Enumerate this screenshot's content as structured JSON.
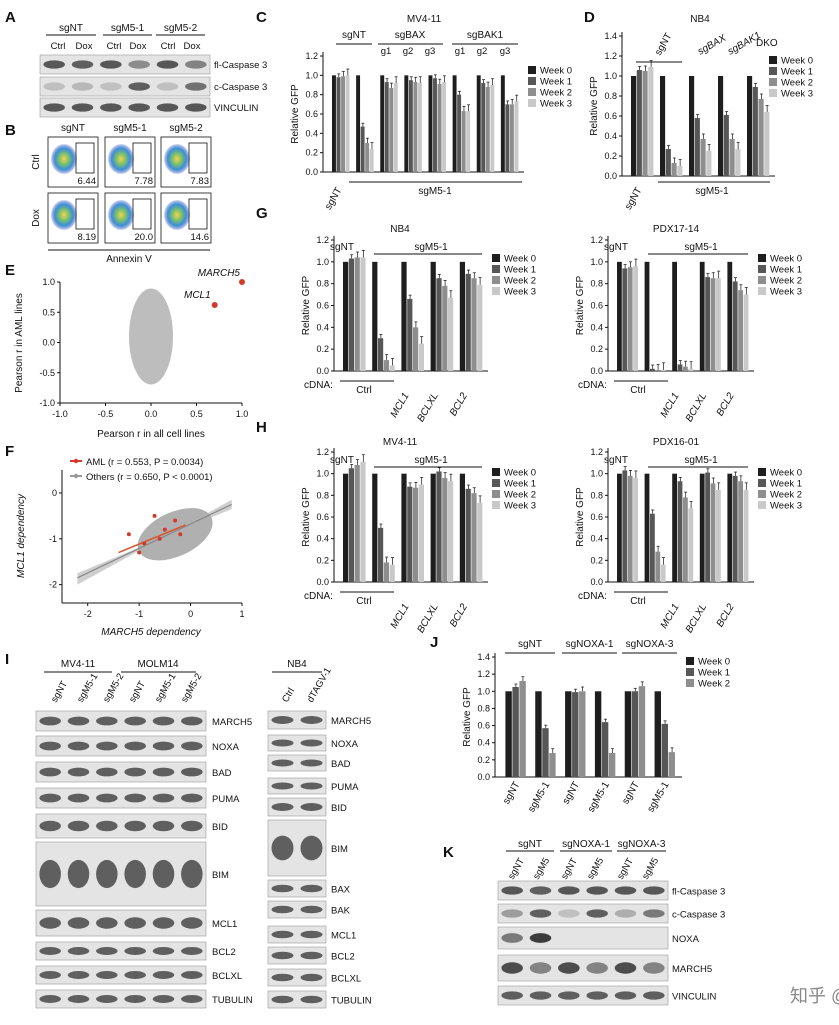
{
  "panels": [
    "A",
    "B",
    "C",
    "D",
    "E",
    "F",
    "G",
    "H",
    "I",
    "J",
    "K"
  ],
  "panelA": {
    "groups": [
      "sgNT",
      "sgM5-1",
      "sgM5-2"
    ],
    "conditions": [
      "Ctrl",
      "Dox"
    ],
    "rows": [
      "fl-Caspase 3",
      "c-Caspase 3",
      "VINCULIN"
    ]
  },
  "panelB": {
    "cols": [
      "sgNT",
      "sgM5-1",
      "sgM5-2"
    ],
    "rows": [
      "Ctrl",
      "Dox"
    ],
    "values": [
      [
        "6.44",
        "7.78",
        "7.83"
      ],
      [
        "8.19",
        "20.0",
        "14.6"
      ]
    ],
    "xlabel": "Annexin V"
  },
  "legend4": [
    "Week 0",
    "Week 1",
    "Week 2",
    "Week 3"
  ],
  "legend3": [
    "Week 0",
    "Week 1",
    "Week 2"
  ],
  "week_colors": [
    "#1e1e1e",
    "#575757",
    "#8e8e8e",
    "#c9c9c9"
  ],
  "ylabel": "Relative GFP",
  "cdna_label": "cDNA:",
  "sgnt": "sgNT",
  "sgm51": "sgM5-1",
  "panelC": {
    "title": "MV4-11",
    "top_labels": [
      "sgNT",
      "sgBAX",
      "sgBAK1"
    ],
    "sub": [
      "g1",
      "g2",
      "g3",
      "g1",
      "g2",
      "g3"
    ],
    "bottom_left": "sgNT",
    "bottom": "sgM5-1"
  },
  "panelD": {
    "title": "NB4",
    "labels": [
      "sgNT",
      "sgBAX",
      "sgBAK1",
      "DKO"
    ],
    "bottom_left": "sgNT",
    "bottom": "sgM5-1"
  },
  "panelG1": {
    "title": "NB4",
    "cdna": [
      "Ctrl",
      "MCL1",
      "BCLXL",
      "BCL2"
    ]
  },
  "panelG2": {
    "title": "PDX17-14",
    "cdna": [
      "Ctrl",
      "MCL1",
      "BCLXL",
      "BCL2"
    ]
  },
  "panelH1": {
    "title": "MV4-11",
    "cdna": [
      "Ctrl",
      "MCL1",
      "BCLXL",
      "BCL2"
    ]
  },
  "panelH2": {
    "title": "PDX16-01",
    "cdna": [
      "Ctrl",
      "MCL1",
      "BCLXL",
      "BCL2"
    ]
  },
  "panelE": {
    "xlabel": "Pearson r in all cell lines",
    "ylabel": "Pearson r in AML lines",
    "labels": [
      "MARCH5",
      "MCL1"
    ]
  },
  "panelF": {
    "legend": [
      "AML (r = 0.553, P = 0.0034)",
      "Others (r = 0.650, P < 0.0001)"
    ],
    "xlabel": "MARCH5 dependency",
    "ylabel": "MCL1 dependency"
  },
  "panelI": {
    "left_groups": [
      "MV4-11",
      "MOLM14"
    ],
    "left_lanes": [
      "sgNT",
      "sgM5-1",
      "sgM5-2",
      "sgNT",
      "sgM5-1",
      "sgM5-2"
    ],
    "right_group": "NB4",
    "right_lanes": [
      "Ctrl",
      "dTAGV-1"
    ],
    "left_rows": [
      "MARCH5",
      "NOXA",
      "BAD",
      "PUMA",
      "BID",
      "BIM",
      "MCL1",
      "BCL2",
      "BCLXL",
      "TUBULIN"
    ],
    "right_rows": [
      "MARCH5",
      "NOXA",
      "BAD",
      "PUMA",
      "BID",
      "BIM",
      "BAX",
      "BAK",
      "MCL1",
      "BCL2",
      "BCLXL",
      "TUBULIN"
    ]
  },
  "panelJ": {
    "groups": [
      "sgNT",
      "sgNOXA-1",
      "sgNOXA-3"
    ],
    "lanes": [
      "sgNT",
      "sgM5-1",
      "sgNT",
      "sgM5-1",
      "sgNT",
      "sgM5-1"
    ]
  },
  "panelK": {
    "groups": [
      "sgNT",
      "sgNOXA-1",
      "sgNOXA-3"
    ],
    "lanes": [
      "sgNT",
      "sgM5",
      "sgNT",
      "sgM5",
      "sgNT",
      "sgM5"
    ],
    "rows": [
      "fl-Caspase 3",
      "c-Caspase 3",
      "NOXA",
      "MARCH5",
      "VINCULIN"
    ]
  },
  "watermark": "知乎 @问之",
  "chart_data": [
    {
      "type": "bar",
      "panel": "C",
      "title": "MV4-11",
      "categories": [
        "sgNT",
        "sgM5-1",
        "sgBAX g1",
        "sgBAX g2",
        "sgBAX g3",
        "sgBAK1 g1",
        "sgBAK1 g2",
        "sgBAK1 g3"
      ],
      "ylim": [
        0,
        1.2
      ],
      "series": [
        {
          "name": "Week 0",
          "values": [
            1.0,
            1.0,
            1.0,
            1.0,
            1.0,
            1.0,
            1.0,
            1.0
          ]
        },
        {
          "name": "Week 1",
          "values": [
            0.98,
            0.47,
            0.93,
            0.95,
            0.97,
            0.8,
            0.92,
            0.7
          ]
        },
        {
          "name": "Week 2",
          "values": [
            0.99,
            0.3,
            0.87,
            0.93,
            0.91,
            0.63,
            0.88,
            0.7
          ]
        },
        {
          "name": "Week 3",
          "values": [
            1.0,
            0.24,
            0.92,
            0.92,
            0.93,
            0.63,
            0.9,
            0.73
          ]
        }
      ]
    },
    {
      "type": "bar",
      "panel": "D",
      "title": "NB4",
      "categories": [
        "sgNT",
        "sgM5-1",
        "sgBAX",
        "sgBAK1",
        "DKO"
      ],
      "ylim": [
        0,
        1.4
      ],
      "series": [
        {
          "name": "Week 0",
          "values": [
            1.0,
            1.0,
            1.0,
            1.0,
            1.0
          ]
        },
        {
          "name": "Week 1",
          "values": [
            1.06,
            0.27,
            0.58,
            0.61,
            0.89
          ]
        },
        {
          "name": "Week 2",
          "values": [
            1.05,
            0.13,
            0.37,
            0.37,
            0.77
          ]
        },
        {
          "name": "Week 3",
          "values": [
            1.09,
            0.1,
            0.25,
            0.27,
            0.64
          ]
        }
      ]
    },
    {
      "type": "bar",
      "panel": "G",
      "title": "NB4",
      "categories": [
        "sgNT Ctrl",
        "sgM5-1 Ctrl",
        "sgM5-1 MCL1",
        "sgM5-1 BCLXL",
        "sgM5-1 BCL2"
      ],
      "ylim": [
        0,
        1.2
      ],
      "series": [
        {
          "name": "Week 0",
          "values": [
            1.0,
            1.0,
            1.0,
            1.0,
            1.0
          ]
        },
        {
          "name": "Week 1",
          "values": [
            1.03,
            0.3,
            0.66,
            0.85,
            0.89
          ]
        },
        {
          "name": "Week 2",
          "values": [
            1.04,
            0.1,
            0.4,
            0.78,
            0.85
          ]
        },
        {
          "name": "Week 3",
          "values": [
            1.04,
            0.05,
            0.25,
            0.67,
            0.79
          ]
        }
      ]
    },
    {
      "type": "bar",
      "panel": "G",
      "title": "PDX17-14",
      "categories": [
        "sgNT Ctrl",
        "sgM5-1 Ctrl",
        "sgM5-1 MCL1",
        "sgM5-1 BCLXL",
        "sgM5-1 BCL2"
      ],
      "ylim": [
        0,
        1.2
      ],
      "series": [
        {
          "name": "Week 0",
          "values": [
            1.0,
            1.0,
            1.0,
            1.0,
            1.0
          ]
        },
        {
          "name": "Week 1",
          "values": [
            0.94,
            0.02,
            0.06,
            0.86,
            0.82
          ]
        },
        {
          "name": "Week 2",
          "values": [
            0.95,
            0.01,
            0.04,
            0.85,
            0.74
          ]
        },
        {
          "name": "Week 3",
          "values": [
            0.96,
            0.01,
            0.02,
            0.85,
            0.7
          ]
        }
      ]
    },
    {
      "type": "bar",
      "panel": "H",
      "title": "MV4-11",
      "categories": [
        "sgNT Ctrl",
        "sgM5-1 Ctrl",
        "sgM5-1 MCL1",
        "sgM5-1 BCLXL",
        "sgM5-1 BCL2"
      ],
      "ylim": [
        0,
        1.2
      ],
      "series": [
        {
          "name": "Week 0",
          "values": [
            1.0,
            1.0,
            1.0,
            1.0,
            1.0
          ]
        },
        {
          "name": "Week 1",
          "values": [
            1.05,
            0.5,
            0.88,
            1.02,
            0.86
          ]
        },
        {
          "name": "Week 2",
          "values": [
            1.08,
            0.18,
            0.87,
            0.96,
            0.82
          ]
        },
        {
          "name": "Week 3",
          "values": [
            1.11,
            0.16,
            0.9,
            0.93,
            0.73
          ]
        }
      ]
    },
    {
      "type": "bar",
      "panel": "H",
      "title": "PDX16-01",
      "categories": [
        "sgNT Ctrl",
        "sgM5-1 Ctrl",
        "sgM5-1 MCL1",
        "sgM5-1 BCLXL",
        "sgM5-1 BCL2"
      ],
      "ylim": [
        0,
        1.2
      ],
      "series": [
        {
          "name": "Week 0",
          "values": [
            1.0,
            1.0,
            1.0,
            1.0,
            1.0
          ]
        },
        {
          "name": "Week 1",
          "values": [
            1.03,
            0.63,
            0.93,
            1.01,
            0.98
          ]
        },
        {
          "name": "Week 2",
          "values": [
            0.98,
            0.28,
            0.78,
            0.91,
            0.93
          ]
        },
        {
          "name": "Week 3",
          "values": [
            0.96,
            0.16,
            0.68,
            0.85,
            0.85
          ]
        }
      ]
    },
    {
      "type": "bar",
      "panel": "J",
      "categories": [
        "sgNT/sgNT",
        "sgNT/sgM5-1",
        "sgNOXA-1/sgNT",
        "sgNOXA-1/sgM5-1",
        "sgNOXA-3/sgNT",
        "sgNOXA-3/sgM5-1"
      ],
      "ylim": [
        0,
        1.4
      ],
      "series": [
        {
          "name": "Week 0",
          "values": [
            1.0,
            1.0,
            1.0,
            1.0,
            1.0,
            1.0
          ]
        },
        {
          "name": "Week 1",
          "values": [
            1.05,
            0.57,
            0.99,
            0.64,
            1.0,
            0.62
          ]
        },
        {
          "name": "Week 2",
          "values": [
            1.12,
            0.28,
            1.0,
            0.28,
            1.06,
            0.29
          ]
        }
      ]
    },
    {
      "type": "scatter",
      "panel": "E",
      "xlim": [
        -1.0,
        1.0
      ],
      "ylim": [
        -1.0,
        1.0
      ],
      "highlights": [
        {
          "label": "MARCH5",
          "x": 1.0,
          "y": 1.0
        },
        {
          "label": "MCL1",
          "x": 0.7,
          "y": 0.62
        }
      ]
    },
    {
      "type": "scatter",
      "panel": "F",
      "xlim": [
        -2,
        1
      ],
      "ylim": [
        -2.2,
        0.5
      ],
      "series": [
        {
          "name": "AML",
          "r": 0.553,
          "P": 0.0034
        },
        {
          "name": "Others",
          "r": 0.65,
          "P": "<0.0001"
        }
      ]
    }
  ]
}
